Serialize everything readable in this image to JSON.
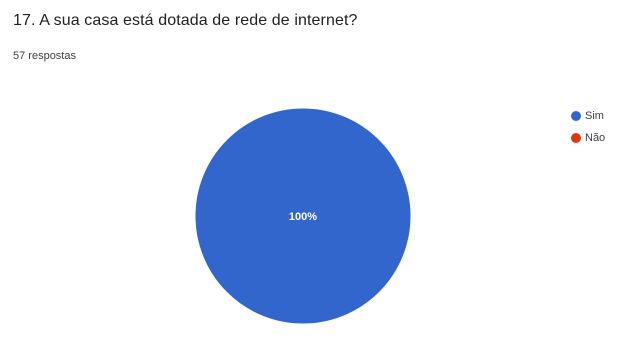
{
  "question": {
    "title": "17. A sua casa está dotada de rede de internet?",
    "responses": "57 respostas"
  },
  "chart_data": {
    "type": "pie",
    "categories": [
      "Sim",
      "Não"
    ],
    "values": [
      100,
      0
    ],
    "colors": [
      "#3366cc",
      "#dc3912"
    ],
    "data_labels": [
      "100%",
      ""
    ],
    "legend_position": "right"
  }
}
